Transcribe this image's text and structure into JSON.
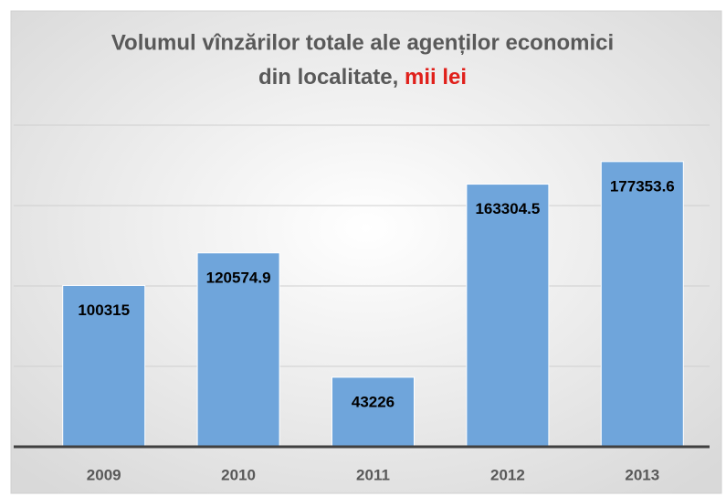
{
  "chart_data": {
    "type": "bar",
    "title": "Volumul vînzărilor totale ale agenților economici",
    "title_line2": "din localitate,",
    "title_highlight": "mii lei",
    "categories": [
      "2009",
      "2010",
      "2011",
      "2012",
      "2013"
    ],
    "values": [
      100315,
      120574.9,
      43226,
      163304.5,
      177353.6
    ],
    "color": "#6fa5db",
    "title_highlight_color": "#e0201b",
    "ylim": [
      0,
      200000
    ],
    "yticks": [
      0,
      50000,
      100000,
      150000,
      200000
    ],
    "grid": true
  }
}
